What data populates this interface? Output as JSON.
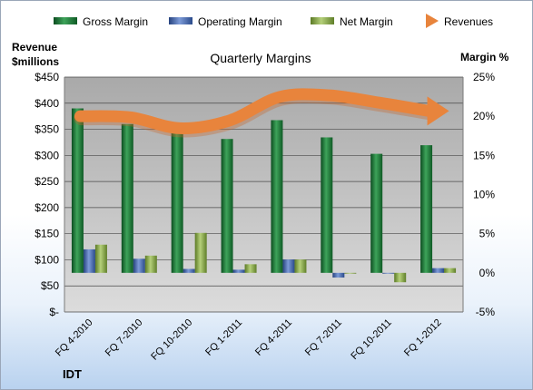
{
  "chart_data": {
    "type": "bar",
    "title": "Quarterly Margins",
    "left_axis_title_line1": "Revenue",
    "left_axis_title_line2": "$millions",
    "right_axis_title": "Margin %",
    "company_label": "IDT",
    "categories": [
      "FQ 4-2010",
      "FQ 7-2010",
      "FQ 10-2010",
      "FQ 1-2011",
      "FQ 4-2011",
      "FQ 7-2011",
      "FQ 10-2011",
      "FQ 1-2012"
    ],
    "left_ylim": [
      0,
      450
    ],
    "left_ticks": [
      0,
      50,
      100,
      150,
      200,
      250,
      300,
      350,
      400,
      450
    ],
    "left_tick_labels": [
      "$-",
      "$50",
      "$100",
      "$150",
      "$200",
      "$250",
      "$300",
      "$350",
      "$400",
      "$450"
    ],
    "right_ylim": [
      -5,
      25
    ],
    "right_ticks": [
      -5,
      0,
      5,
      10,
      15,
      20,
      25
    ],
    "right_tick_labels": [
      "-5%",
      "0%",
      "5%",
      "10%",
      "15%",
      "20%",
      "25%"
    ],
    "series": [
      {
        "name": "Gross Margin",
        "axis": "right",
        "color": "#1e7d3a",
        "values": [
          21.0,
          19.0,
          18.5,
          17.1,
          19.5,
          17.3,
          15.2,
          16.3
        ]
      },
      {
        "name": "Operating Margin",
        "axis": "right",
        "color": "#4f73c0",
        "values": [
          3.0,
          1.8,
          0.5,
          0.4,
          1.7,
          -0.6,
          -0.1,
          0.6
        ]
      },
      {
        "name": "Net Margin",
        "axis": "right",
        "color": "#8dae4f",
        "values": [
          3.6,
          2.2,
          5.1,
          1.1,
          1.7,
          -0.1,
          -1.2,
          0.6
        ]
      },
      {
        "name": "Revenues",
        "axis": "left",
        "color": "#e8843c",
        "type": "line",
        "values": [
          375,
          373,
          352,
          367,
          412,
          415,
          401,
          385
        ]
      }
    ],
    "legend_position": "top",
    "grid": true
  }
}
